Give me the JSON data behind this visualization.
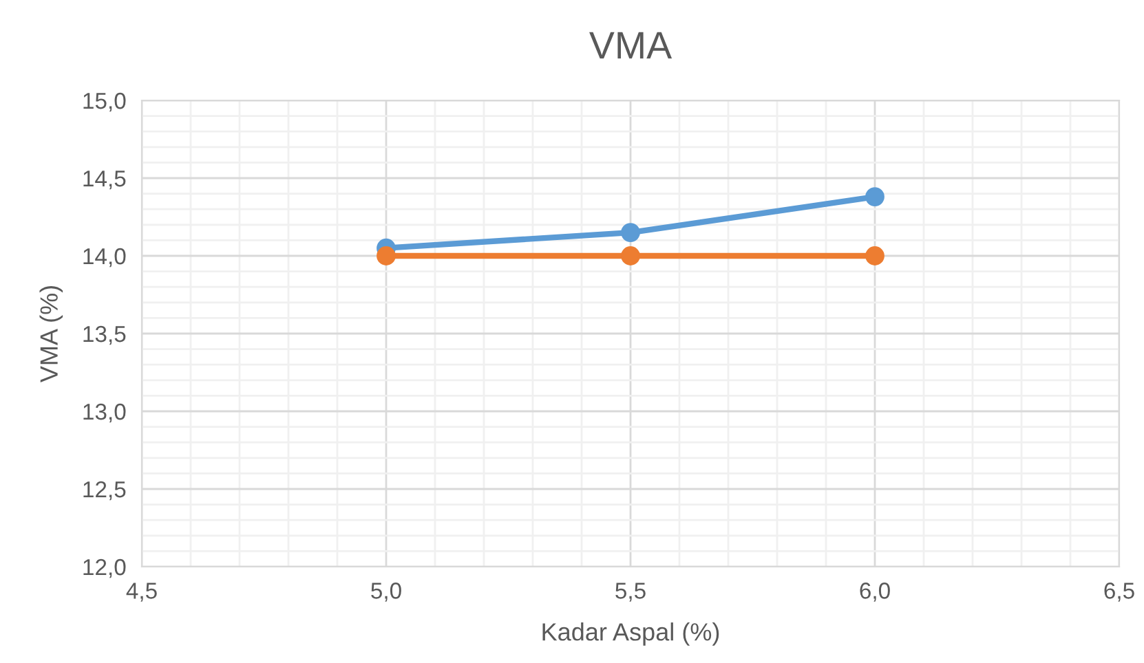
{
  "chart_data": {
    "type": "line",
    "title": "VMA",
    "xlabel": "Kadar Aspal (%)",
    "ylabel": "VMA (%)",
    "x": [
      5.0,
      5.5,
      6.0
    ],
    "series": [
      {
        "color": "#5b9bd5",
        "values": [
          14.05,
          14.15,
          14.38
        ]
      },
      {
        "color": "#ed7d31",
        "values": [
          14.0,
          14.0,
          14.0
        ]
      }
    ],
    "xlim": [
      4.5,
      6.5
    ],
    "xticks": [
      {
        "value": 4.5,
        "label": "4,5"
      },
      {
        "value": 5.0,
        "label": "5,0"
      },
      {
        "value": 5.5,
        "label": "5,5"
      },
      {
        "value": 6.0,
        "label": "6,0"
      },
      {
        "value": 6.5,
        "label": "6,5"
      }
    ],
    "ylim": [
      12.0,
      15.0
    ],
    "yticks": [
      {
        "value": 12.0,
        "label": "12,0"
      },
      {
        "value": 12.5,
        "label": "12,5"
      },
      {
        "value": 13.0,
        "label": "13,0"
      },
      {
        "value": 13.5,
        "label": "13,5"
      },
      {
        "value": 14.0,
        "label": "14,0"
      },
      {
        "value": 14.5,
        "label": "14,5"
      },
      {
        "value": 15.0,
        "label": "15,0"
      }
    ],
    "grid": true,
    "marker": "circle",
    "line_style": "solid"
  }
}
